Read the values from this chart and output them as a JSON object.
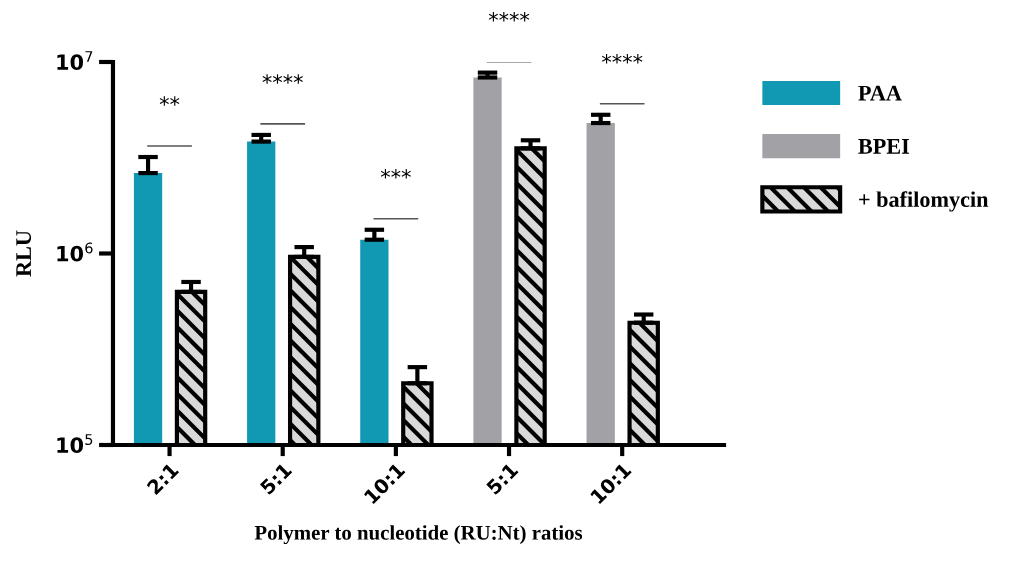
{
  "chart_data": {
    "type": "bar",
    "xlabel": "Polymer to nucleotide (RU:Nt) ratios",
    "ylabel": "RLU",
    "categories": [
      "2:1",
      "5:1",
      "10:1",
      "5:1",
      "10:1"
    ],
    "series": [
      {
        "name": "PAA",
        "color": "#1199b4",
        "values": [
          2630000,
          3840000,
          1180000,
          null,
          null
        ],
        "errors": [
          [
            2630000,
            3190000
          ],
          [
            3840000,
            4160000
          ],
          [
            1180000,
            1330000
          ],
          null,
          null
        ]
      },
      {
        "name": "BPEI",
        "color": "#a1a1a6",
        "values": [
          null,
          null,
          null,
          8300000,
          4800000
        ],
        "errors": [
          null,
          null,
          null,
          [
            8300000,
            8800000
          ],
          [
            4800000,
            5300000
          ]
        ]
      },
      {
        "name": "+ bafilomycin",
        "color": "#d9d9d9",
        "values": [
          630000,
          960000,
          210000,
          3540000,
          435000
        ],
        "errors": [
          [
            630000,
            710000
          ],
          [
            960000,
            1080000
          ],
          [
            210000,
            255000
          ],
          [
            3540000,
            3900000
          ],
          [
            435000,
            480000
          ]
        ]
      }
    ],
    "log": "y",
    "ylim": [
      100000,
      10000000
    ],
    "yticks": [
      {
        "value": 100000,
        "label": "10$^{5}$"
      },
      {
        "value": 1000000,
        "label": "10$^{6}$"
      },
      {
        "value": 10000000,
        "label": "10$^{7}$"
      }
    ],
    "annotations": [
      "**",
      "****",
      "***",
      "****",
      "****"
    ],
    "grid": false,
    "legend": "right"
  }
}
